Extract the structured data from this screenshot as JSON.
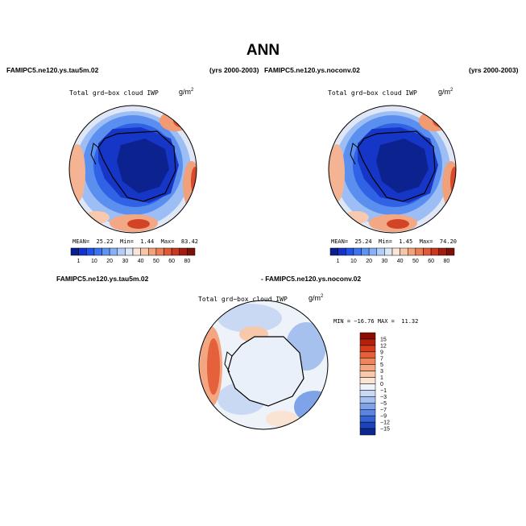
{
  "title": "ANN",
  "panels": [
    {
      "case": "FAMIPC5.ne120.ys.tau5m.02",
      "years": "(yrs 2000-2003)",
      "variable": "Total grd−box cloud IWP",
      "units_base": "g/m",
      "units_exp": "2",
      "stats": {
        "mean_label": "MEAN=",
        "mean": "25.22",
        "min_label": "Min=",
        "min": "1.44",
        "max_label": "Max=",
        "max": "83.42"
      }
    },
    {
      "case": "FAMIPC5.ne120.ys.noconv.02",
      "years": "(yrs 2000-2003)",
      "variable": "Total grd−box cloud IWP",
      "units_base": "g/m",
      "units_exp": "2",
      "stats": {
        "mean_label": "MEAN=",
        "mean": "25.24",
        "min_label": "Min=",
        "min": "1.45",
        "max_label": "Max=",
        "max": "74.20"
      }
    }
  ],
  "abs_colorbar": {
    "labels": [
      "1",
      "10",
      "20",
      "30",
      "40",
      "50",
      "60",
      "80"
    ],
    "colors": [
      "#0a1f8f",
      "#1432c8",
      "#2352e6",
      "#3d74ee",
      "#5f93f3",
      "#86b1f6",
      "#b3cdf8",
      "#dce7f8",
      "#fbe5d6",
      "#f7c6a8",
      "#f3a37a",
      "#ec7f55",
      "#e05a37",
      "#c9381f",
      "#a31d0e",
      "#7e1005"
    ]
  },
  "diff": {
    "case_a": "FAMIPC5.ne120.ys.tau5m.02",
    "case_b": "- FAMIPC5.ne120.ys.noconv.02",
    "variable": "Total grd−box cloud IWP",
    "units_base": "g/m",
    "units_exp": "2",
    "minmax": "MIN = −16.76 MAX =  11.32",
    "colorbar": {
      "labels": [
        "15",
        "12",
        "9",
        "7",
        "5",
        "3",
        "1",
        "0",
        "−1",
        "−3",
        "−5",
        "−7",
        "−9",
        "−12",
        "−15"
      ],
      "colors": [
        "#8c0c04",
        "#b5200c",
        "#d43c1d",
        "#e5613c",
        "#ef855d",
        "#f4a683",
        "#f8c8ab",
        "#fbe3d4",
        "#eef2f9",
        "#c9d9f4",
        "#a6c1ee",
        "#7fa3e8",
        "#5a84e0",
        "#3563d6",
        "#1b43bb",
        "#0c2790"
      ]
    }
  }
}
